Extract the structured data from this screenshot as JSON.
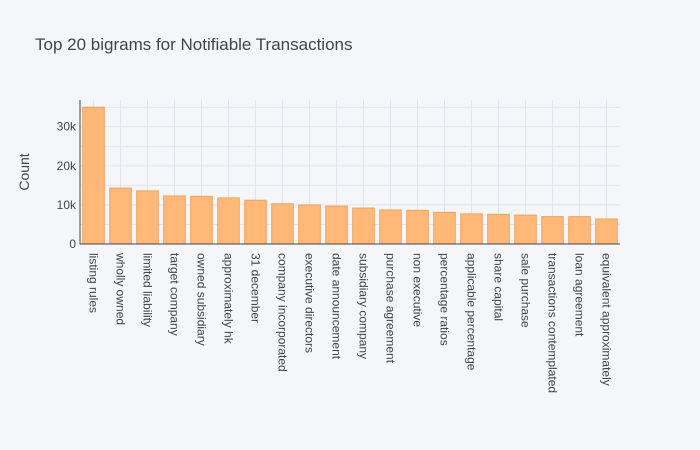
{
  "chart_data": {
    "type": "bar",
    "title": "Top 20 bigrams for Notifiable Transactions",
    "xlabel": "",
    "ylabel": "Count",
    "categories": [
      "listing rules",
      "wholly owned",
      "limited liability",
      "target company",
      "owned subsidiary",
      "approximately hk",
      "31 december",
      "company incorporated",
      "executive directors",
      "date announcement",
      "subsidiary company",
      "purchase agreement",
      "non executive",
      "percentage ratios",
      "applicable percentage",
      "share capital",
      "sale purchase",
      "transactions contemplated",
      "loan agreement",
      "equivalent approximately"
    ],
    "values": [
      35000,
      14300,
      13600,
      12300,
      12200,
      11800,
      11200,
      10300,
      10000,
      9700,
      9200,
      8700,
      8600,
      8100,
      7700,
      7600,
      7400,
      7000,
      7000,
      6400
    ],
    "ylim": [
      0,
      36842
    ],
    "yticks": [
      0,
      10000,
      20000,
      30000
    ],
    "ytick_labels": [
      "0",
      "10k",
      "20k",
      "30k"
    ],
    "grid": true,
    "bar_color": "#ffb878",
    "bar_edge_color": "#f4a15c",
    "background": "#f5f6f9",
    "grid_color": "#e2e4ea"
  }
}
